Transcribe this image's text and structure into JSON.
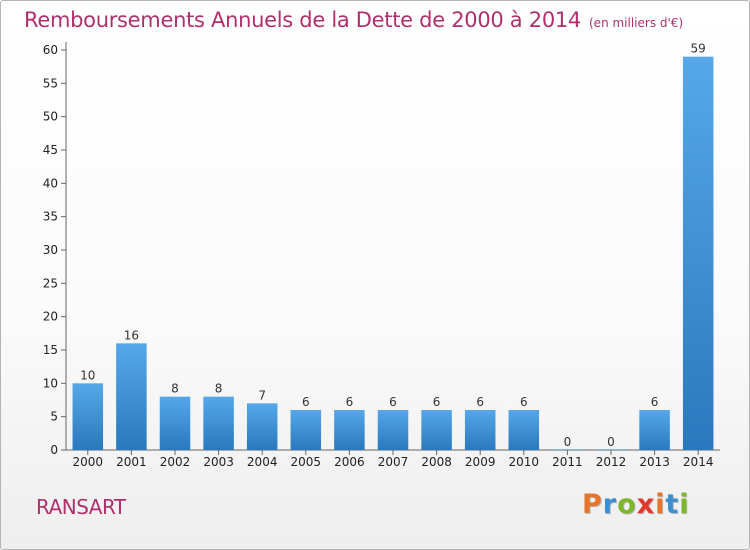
{
  "chart_data": {
    "type": "bar",
    "title": "Remboursements Annuels de la Dette de 2000 à 2014",
    "subtitle": "(en milliers d'€)",
    "categories": [
      "2000",
      "2001",
      "2002",
      "2003",
      "2004",
      "2005",
      "2006",
      "2007",
      "2008",
      "2009",
      "2010",
      "2011",
      "2012",
      "2013",
      "2014"
    ],
    "values": [
      10,
      16,
      8,
      8,
      7,
      6,
      6,
      6,
      6,
      6,
      6,
      0,
      0,
      6,
      59
    ],
    "xlabel": "",
    "ylabel": "",
    "ylim": [
      0,
      60
    ],
    "yticks": [
      0,
      5,
      10,
      15,
      20,
      25,
      30,
      35,
      40,
      45,
      50,
      55,
      60
    ],
    "grid": false,
    "bar_color": "#3a8fd4"
  },
  "footer": {
    "commune": "RANSART",
    "logo_letters": [
      {
        "ch": "P",
        "color": "#e8732a"
      },
      {
        "ch": "r",
        "color": "#3b8fd0"
      },
      {
        "ch": "o",
        "color": "#7ab829"
      },
      {
        "ch": "x",
        "color": "#e2372b"
      },
      {
        "ch": "i",
        "color": "#e8732a"
      },
      {
        "ch": "t",
        "color": "#3b8fd0"
      },
      {
        "ch": "i",
        "color": "#7ab829"
      }
    ]
  }
}
